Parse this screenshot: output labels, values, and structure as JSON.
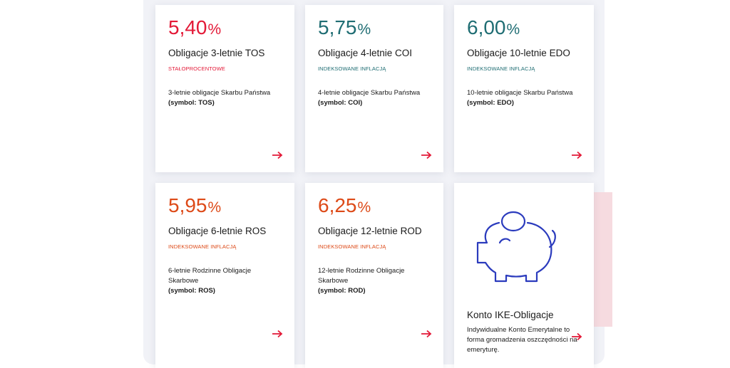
{
  "cards": [
    {
      "rate": "5,40",
      "pct": "%",
      "title": "Obligacje 3-letnie TOS",
      "tag": "STAŁOPROCENTOWE",
      "desc": "3-letnie obligacje Skarbu Państwa",
      "symbol": "(symbol: TOS)",
      "accent": "#e31937"
    },
    {
      "rate": "5,75",
      "pct": "%",
      "title": "Obligacje 4-letnie COI",
      "tag": "INDEKSOWANE INFLACJĄ",
      "desc": "4-letnie obligacje Skarbu Państwa",
      "symbol": "(symbol: COI)",
      "accent": "#1f6d73"
    },
    {
      "rate": "6,00",
      "pct": "%",
      "title": "Obligacje 10-letnie EDO",
      "tag": "INDEKSOWANE INFLACJĄ",
      "desc": "10-letnie obligacje Skarbu Państwa",
      "symbol": "(symbol: EDO)",
      "accent": "#1f6d73"
    },
    {
      "rate": "5,95",
      "pct": "%",
      "title": "Obligacje 6-letnie ROS",
      "tag": "INDEKSOWANE INFLACJĄ",
      "desc": "6-letnie Rodzinne Obligacje Skarbowe",
      "symbol": "(symbol: ROS)",
      "accent": "#dd4a18"
    },
    {
      "rate": "6,25",
      "pct": "%",
      "title": "Obligacje 12-letnie ROD",
      "tag": "INDEKSOWANE INFLACJĄ",
      "desc": "12-letnie Rodzinne Obligacje Skarbowe",
      "symbol": "(symbol: ROD)",
      "accent": "#dd4a18"
    }
  ],
  "ike": {
    "title": "Konto IKE-Obligacje",
    "desc": "Indywidualne Konto Emerytalne to forma gromadzenia oszczędności na emeryturę.",
    "icon": "piggy-bank-icon",
    "icon_color": "#2b3bbd"
  },
  "arrow_icon": "arrow-right-icon",
  "arrow_color": "#e31937"
}
